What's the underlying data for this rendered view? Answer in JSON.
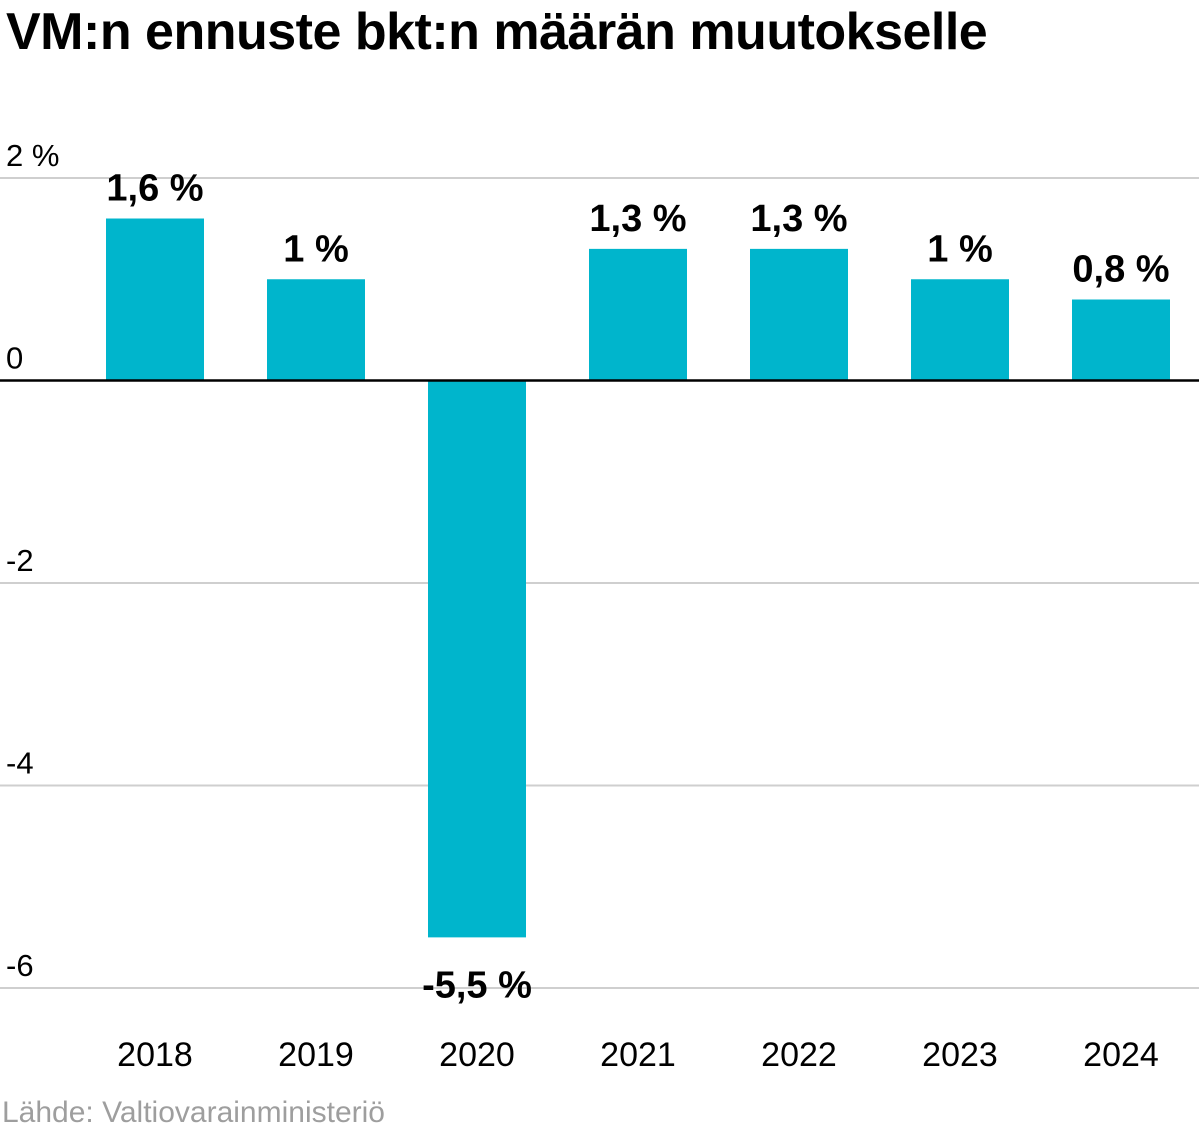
{
  "chart_data": {
    "type": "bar",
    "title": "VM:n ennuste bkt:n määrän muutokselle",
    "categories": [
      "2018",
      "2019",
      "2020",
      "2021",
      "2022",
      "2023",
      "2024"
    ],
    "values": [
      1.6,
      1.0,
      -5.5,
      1.3,
      1.3,
      1.0,
      0.8
    ],
    "data_labels": [
      "1,6 %",
      "1 %",
      "-5,5 %",
      "1,3 %",
      "1,3 %",
      "1 %",
      "0,8 %"
    ],
    "y_ticks": [
      {
        "value": 2,
        "label": "2 %"
      },
      {
        "value": 0,
        "label": "0"
      },
      {
        "value": -2,
        "label": "-2"
      },
      {
        "value": -4,
        "label": "-4"
      },
      {
        "value": -6,
        "label": "-6"
      }
    ],
    "ylim": [
      -6,
      2
    ],
    "xlabel": "",
    "ylabel": "",
    "grid": true,
    "legend": "none",
    "bar_color": "#00b5cc",
    "source": "Lähde: Valtiovarainministeriö"
  }
}
